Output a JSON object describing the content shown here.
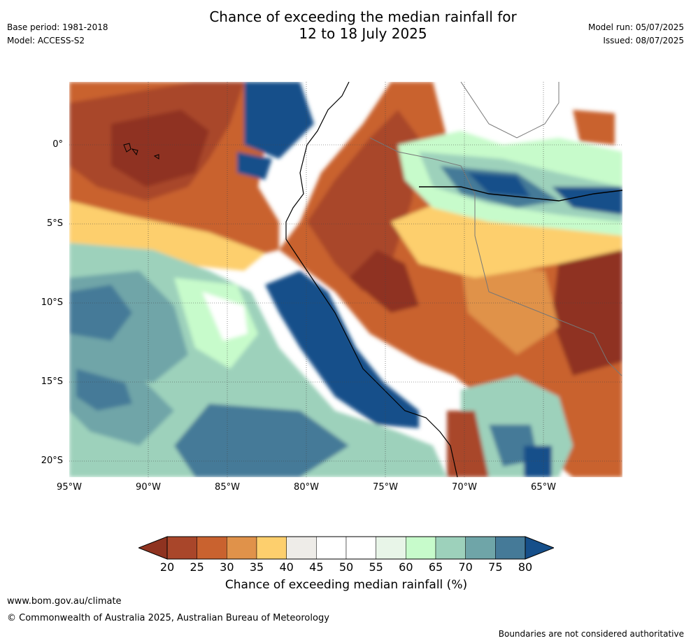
{
  "title": {
    "line1": "Chance of exceeding the median rainfall for",
    "line2": "12 to 18 July 2025"
  },
  "meta": {
    "base_period": "Base period: 1981-2018",
    "model": "Model: ACCESS-S2",
    "model_run": "Model run: 05/07/2025",
    "issued": "Issued: 08/07/2025"
  },
  "map": {
    "region": "Western South America",
    "lat_labels": [
      "0°",
      "5°S",
      "10°S",
      "15°S",
      "20°S"
    ],
    "lon_labels": [
      "95°W",
      "90°W",
      "85°W",
      "80°W",
      "75°W",
      "70°W",
      "65°W"
    ],
    "lat_values": [
      0,
      -5,
      -10,
      -15,
      -20
    ],
    "lon_values": [
      -95,
      -90,
      -85,
      -80,
      -75,
      -70,
      -65
    ],
    "extent": {
      "lon_min": -95,
      "lon_max": -60,
      "lat_min": -21,
      "lat_max": 4
    }
  },
  "legend": {
    "ticks": [
      "20",
      "25",
      "30",
      "35",
      "40",
      "45",
      "50",
      "55",
      "60",
      "65",
      "70",
      "75",
      "80"
    ],
    "bin_colors": [
      "#a9462a",
      "#c9622f",
      "#e0924a",
      "#fdcf6d",
      "#eeece8",
      "#ffffff",
      "#ffffff",
      "#e8f5e8",
      "#c7fbcb",
      "#9dd1bb",
      "#6fa5a8",
      "#457a98"
    ],
    "under_color": "#8f3320",
    "over_color": "#164f8a",
    "label": "Chance of exceeding median rainfall (%)"
  },
  "footer": {
    "url": "www.bom.gov.au/climate",
    "copyright": "© Commonwealth of Australia 2025, Australian Bureau of Meteorology",
    "disclaimer": "Boundaries are not considered authoritative"
  }
}
